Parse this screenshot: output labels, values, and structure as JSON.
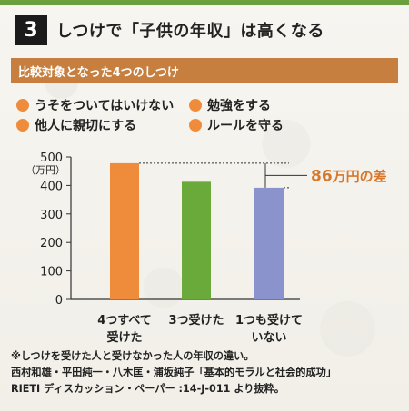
{
  "header": {
    "badge": "3",
    "title": "しつけで「子供の年収」は高くなる"
  },
  "section": {
    "label": "比較対象となった4つのしつけ"
  },
  "legend": {
    "items": [
      "うそをついてはいけない",
      "勉強をする",
      "他人に親切にする",
      "ルールを守る"
    ],
    "dot_color": "#ef8c3c"
  },
  "chart_data": {
    "type": "bar",
    "categories": [
      "4つすべて受けた",
      "3つ受けた",
      "1つも受けていない"
    ],
    "category_lines": [
      [
        "4つすべて",
        "受けた"
      ],
      [
        "3つ受けた"
      ],
      [
        "1つも受けて",
        "いない"
      ]
    ],
    "values": [
      478,
      413,
      392
    ],
    "colors": [
      "#ef8c3c",
      "#6aaa3a",
      "#8a93cc"
    ],
    "ylabel": [
      "500",
      "（万円）"
    ],
    "ylim": [
      0,
      500
    ],
    "yticks": [
      0,
      100,
      200,
      300,
      400,
      500
    ],
    "annotation": {
      "text_bold": "86",
      "text_rest": "万円の差",
      "from": 478,
      "to": 392
    }
  },
  "footnote": {
    "lines": [
      "※しつけを受けた人と受けなかった人の年収の違い。",
      "西村和雄・平田純一・八木匡・浦坂純子「基本的モラルと社会的成功」",
      "RIETI ディスカッション・ペーパー :14-J-011 より抜粋。"
    ]
  }
}
